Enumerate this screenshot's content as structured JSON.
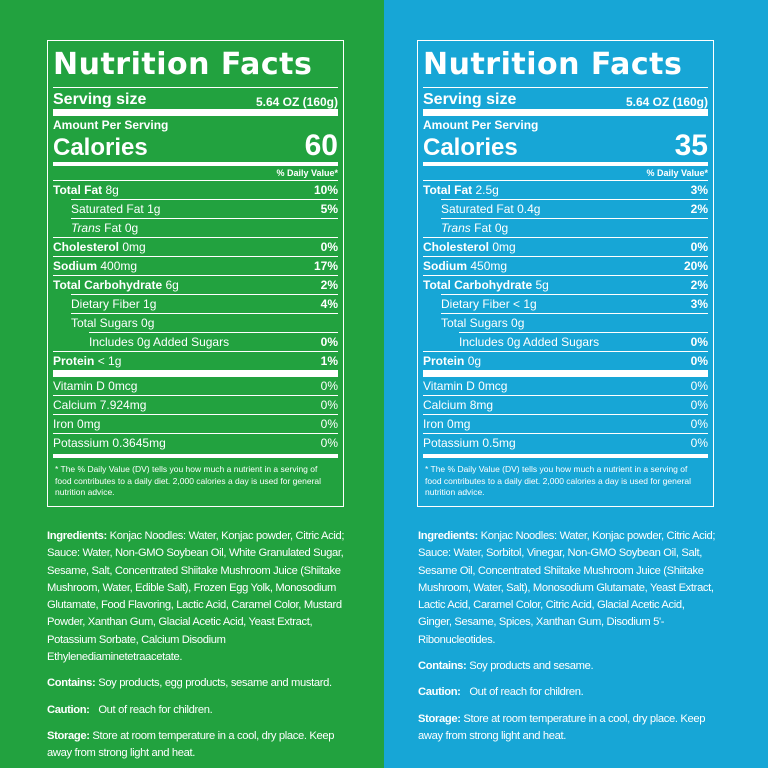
{
  "colors": {
    "left_bg": "#22a23f",
    "right_bg": "#17a6d6",
    "text": "#ffffff"
  },
  "labels": {
    "title": "Nutrition Facts",
    "serving_size": "Serving size",
    "amount_per_serving": "Amount Per Serving",
    "calories": "Calories",
    "daily_value": "% Daily Value*",
    "total_fat": "Total Fat",
    "saturated_fat": "Saturated Fat",
    "trans": "Trans",
    "trans_fat": "Fat",
    "cholesterol": "Cholesterol",
    "sodium": "Sodium",
    "total_carb": "Total Carbohydrate",
    "dietary_fiber": "Dietary Fiber",
    "total_sugars": "Total Sugars",
    "added_sugars": "Includes 0g Added Sugars",
    "protein": "Protein",
    "vitamin_d": "Vitamin D",
    "calcium": "Calcium",
    "iron": "Iron",
    "potassium": "Potassium",
    "ingredients": "Ingredients:",
    "contains": "Contains:",
    "caution": "Caution:",
    "storage": "Storage:",
    "footnote": "* The % Daily Value (DV) tells you how much a nutrient in a serving of food contributes to a daily diet. 2,000 calories a day is used for general nutrition advice."
  },
  "left": {
    "serving_value": "5.64 OZ (160g)",
    "calories": "60",
    "total_fat": "8g",
    "total_fat_dv": "10%",
    "saturated_fat": "1g",
    "saturated_fat_dv": "5%",
    "trans_fat": "0g",
    "cholesterol": "0mg",
    "cholesterol_dv": "0%",
    "sodium": "400mg",
    "sodium_dv": "17%",
    "total_carb": "6g",
    "total_carb_dv": "2%",
    "dietary_fiber": "1g",
    "dietary_fiber_dv": "4%",
    "total_sugars": "0g",
    "added_sugars_dv": "0%",
    "protein": "< 1g",
    "protein_dv": "1%",
    "vitamin_d": "0mcg",
    "vitamin_d_dv": "0%",
    "calcium": "7.924mg",
    "calcium_dv": "0%",
    "iron": "0mg",
    "iron_dv": "0%",
    "potassium": "0.3645mg",
    "potassium_dv": "0%",
    "ingredients": "Konjac Noodles: Water, Konjac powder, Citric Acid; Sauce: Water, Non-GMO Soybean Oil, White Granulated Sugar, Sesame, Salt, Concentrated Shiitake Mushroom Juice (Shiitake Mushroom, Water, Edible Salt), Frozen Egg Yolk, Monosodium Glutamate, Food Flavoring, Lactic Acid, Caramel Color, Mustard Powder, Xanthan Gum, Glacial Acetic Acid, Yeast Extract, Potassium Sorbate, Calcium Disodium Ethylenediaminetetraacetate.",
    "contains": "Soy products, egg products, sesame and mustard.",
    "caution": "Out of reach for children.",
    "storage": "Store at room temperature in a cool, dry place. Keep away from strong light and heat."
  },
  "right": {
    "serving_value": "5.64 OZ (160g)",
    "calories": "35",
    "total_fat": "2.5g",
    "total_fat_dv": "3%",
    "saturated_fat": "0.4g",
    "saturated_fat_dv": "2%",
    "trans_fat": "0g",
    "cholesterol": "0mg",
    "cholesterol_dv": "0%",
    "sodium": "450mg",
    "sodium_dv": "20%",
    "total_carb": "5g",
    "total_carb_dv": "2%",
    "dietary_fiber": "< 1g",
    "dietary_fiber_dv": "3%",
    "total_sugars": "0g",
    "added_sugars_dv": "0%",
    "protein": "0g",
    "protein_dv": "0%",
    "vitamin_d": "0mcg",
    "vitamin_d_dv": "0%",
    "calcium": "8mg",
    "calcium_dv": "0%",
    "iron": "0mg",
    "iron_dv": "0%",
    "potassium": "0.5mg",
    "potassium_dv": "0%",
    "ingredients": "Konjac Noodles: Water, Konjac powder, Citric Acid; Sauce: Water, Sorbitol, Vinegar, Non-GMO Soybean Oil, Salt, Sesame Oil, Concentrated Shiitake Mushroom Juice (Shiitake Mushroom, Water, Salt), Monosodium Glutamate, Yeast Extract, Lactic Acid, Caramel Color, Citric Acid, Glacial Acetic Acid, Ginger, Sesame, Spices, Xanthan Gum, Disodium 5'-Ribonucleotides.",
    "contains": "Soy products and sesame.",
    "caution": "Out of reach for children.",
    "storage": "Store at room temperature in a cool, dry place. Keep away from strong light and heat."
  }
}
